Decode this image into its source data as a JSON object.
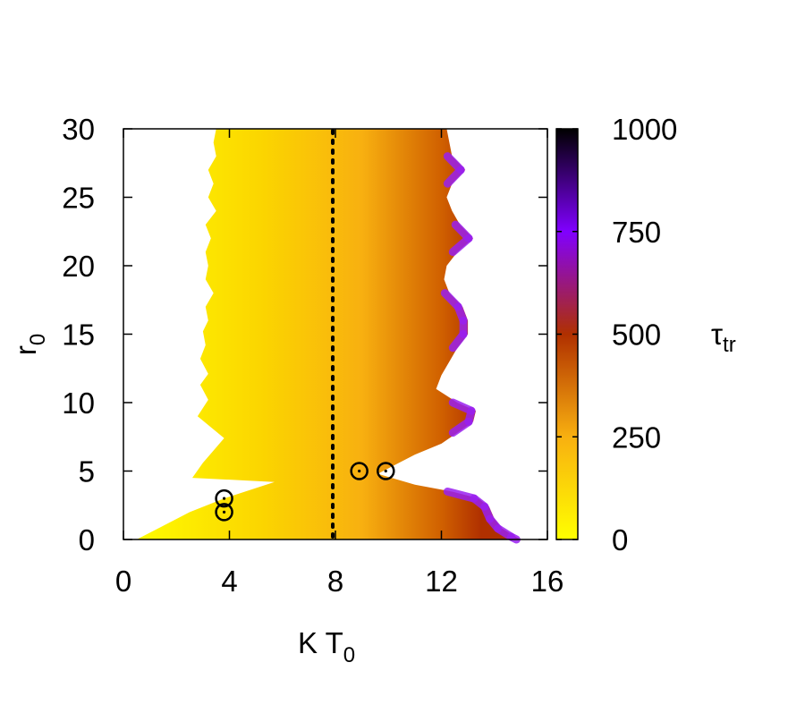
{
  "chart_data": {
    "type": "heatmap",
    "xlabel": "K T",
    "xlabel_sub": "0",
    "ylabel": "r",
    "ylabel_sub": "0",
    "xlim": [
      0,
      16
    ],
    "ylim": [
      0,
      30
    ],
    "x_ticks": [
      0,
      4,
      8,
      12,
      16
    ],
    "y_ticks": [
      0,
      5,
      10,
      15,
      20,
      25,
      30
    ],
    "colorbar": {
      "label": "τ",
      "label_sub": "tr",
      "range": [
        0,
        1000
      ],
      "ticks": [
        0,
        250,
        500,
        750,
        1000
      ],
      "palette": [
        "#ffff00",
        "#f8b010",
        "#d06000",
        "#b03000",
        "#8000ff",
        "#000000"
      ]
    },
    "region_left_boundary": [
      [
        0.5,
        0
      ],
      [
        1.5,
        1
      ],
      [
        2.5,
        2
      ],
      [
        3.8,
        3
      ],
      [
        5.7,
        4.2
      ],
      [
        2.6,
        4.5
      ],
      [
        3.0,
        5.6
      ],
      [
        3.8,
        7.4
      ],
      [
        2.8,
        9.0
      ],
      [
        3.2,
        10.2
      ],
      [
        2.9,
        11.3
      ],
      [
        3.2,
        12.1
      ],
      [
        2.9,
        13.2
      ],
      [
        3.1,
        14.2
      ],
      [
        3.0,
        15.2
      ],
      [
        3.2,
        16.0
      ],
      [
        3.1,
        17.0
      ],
      [
        3.4,
        18.0
      ],
      [
        3.1,
        19.0
      ],
      [
        3.2,
        20.0
      ],
      [
        3.1,
        21.0
      ],
      [
        3.3,
        22.0
      ],
      [
        3.1,
        23.0
      ],
      [
        3.5,
        24.0
      ],
      [
        3.2,
        25.0
      ],
      [
        3.4,
        26.0
      ],
      [
        3.2,
        27.0
      ],
      [
        3.5,
        28.0
      ],
      [
        3.4,
        29.0
      ],
      [
        3.5,
        30
      ]
    ],
    "region_right_boundary": [
      [
        12.2,
        30
      ],
      [
        12.3,
        29
      ],
      [
        12.4,
        28
      ],
      [
        12.9,
        27
      ],
      [
        12.4,
        26
      ],
      [
        12.2,
        25
      ],
      [
        12.4,
        24
      ],
      [
        12.7,
        23
      ],
      [
        13.2,
        22
      ],
      [
        12.6,
        21
      ],
      [
        12.2,
        20
      ],
      [
        12.1,
        19
      ],
      [
        12.3,
        18
      ],
      [
        12.8,
        17
      ],
      [
        13.0,
        16
      ],
      [
        13.0,
        15
      ],
      [
        12.6,
        14
      ],
      [
        12.3,
        13
      ],
      [
        12.0,
        12
      ],
      [
        11.8,
        11
      ],
      [
        12.6,
        10
      ],
      [
        13.3,
        9.4
      ],
      [
        13.2,
        8.6
      ],
      [
        12.6,
        7.8
      ],
      [
        12.0,
        7.0
      ],
      [
        11.0,
        6.2
      ],
      [
        10.2,
        5.4
      ],
      [
        9.6,
        4.8
      ],
      [
        11.0,
        4.0
      ],
      [
        12.4,
        3.5
      ],
      [
        13.4,
        3.0
      ],
      [
        13.8,
        2.4
      ],
      [
        14.0,
        1.5
      ],
      [
        14.3,
        0.8
      ],
      [
        14.8,
        0.2
      ],
      [
        15.0,
        0
      ]
    ],
    "vertical_line": {
      "x": 7.9,
      "style": "dotted"
    },
    "markers": [
      {
        "x": 3.8,
        "y": 2
      },
      {
        "x": 3.8,
        "y": 3
      },
      {
        "x": 8.9,
        "y": 5
      },
      {
        "x": 9.9,
        "y": 5
      }
    ]
  }
}
